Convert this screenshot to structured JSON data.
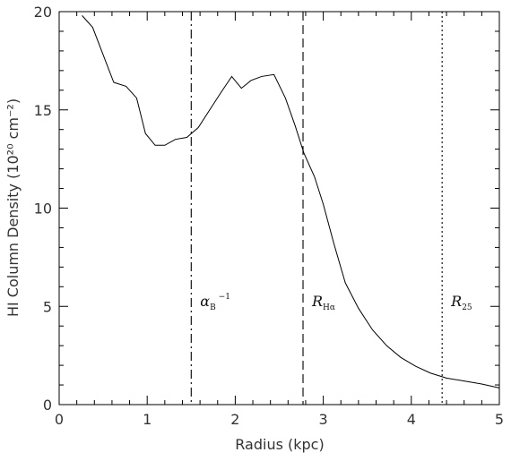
{
  "chart_data": {
    "type": "line",
    "xlabel": "Radius (kpc)",
    "ylabel": "HI Column Density (10²⁰ cm⁻²)",
    "xlim": [
      0,
      5
    ],
    "ylim": [
      0,
      20
    ],
    "grid": false,
    "xticks": [
      0,
      1,
      2,
      3,
      4,
      5
    ],
    "yticks": [
      0,
      5,
      10,
      15,
      20
    ],
    "x_tick_labels": [
      "0",
      "1",
      "2",
      "3",
      "4",
      "5"
    ],
    "y_tick_labels": [
      "0",
      "5",
      "10",
      "15",
      "20"
    ],
    "series": [
      {
        "x": [
          0.26,
          0.38,
          0.5,
          0.62,
          0.76,
          0.88,
          0.98,
          1.09,
          1.2,
          1.32,
          1.45,
          1.58,
          1.71,
          1.84,
          1.96,
          2.07,
          2.18,
          2.3,
          2.44,
          2.57,
          2.68,
          2.78,
          2.9,
          3.0,
          3.12,
          3.25,
          3.4,
          3.56,
          3.72,
          3.88,
          4.05,
          4.22,
          4.4,
          4.6,
          4.8,
          5.0
        ],
        "y": [
          19.8,
          19.2,
          17.8,
          16.4,
          16.2,
          15.6,
          13.8,
          13.2,
          13.2,
          13.5,
          13.6,
          14.1,
          15.0,
          15.9,
          16.7,
          16.1,
          16.5,
          16.7,
          16.8,
          15.6,
          14.2,
          12.8,
          11.6,
          10.2,
          8.2,
          6.2,
          4.9,
          3.8,
          3.0,
          2.4,
          1.95,
          1.6,
          1.35,
          1.2,
          1.05,
          0.85
        ]
      }
    ],
    "reference_lines": [
      {
        "x": 1.5,
        "style": "dash-dot",
        "label": "α",
        "subscript": "B",
        "superscript": "−1"
      },
      {
        "x": 2.77,
        "style": "dashed",
        "label": "R",
        "subscript": "Hα",
        "superscript": ""
      },
      {
        "x": 4.35,
        "style": "dotted",
        "label": "R",
        "subscript": "25",
        "superscript": ""
      }
    ]
  }
}
